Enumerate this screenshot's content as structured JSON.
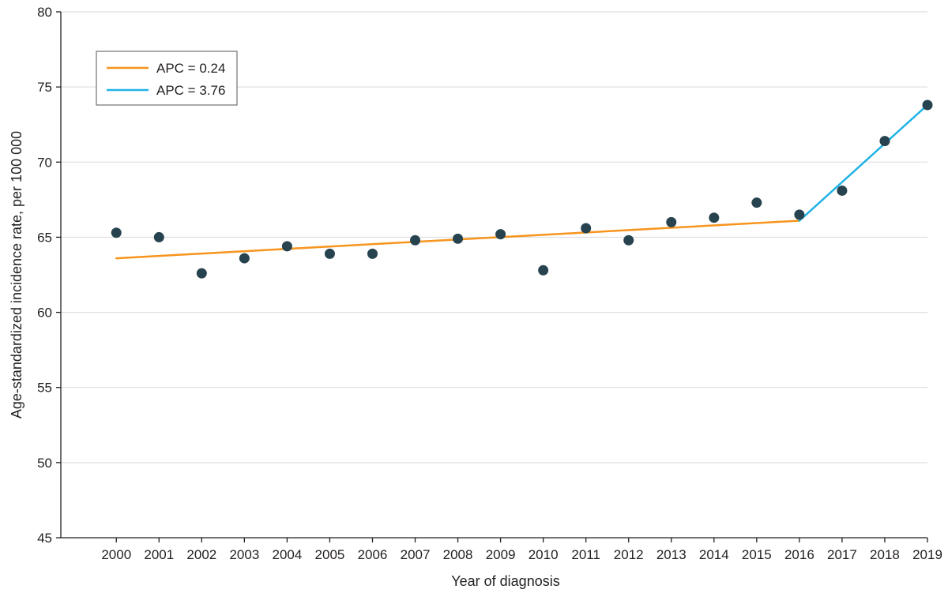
{
  "chart_data": {
    "type": "scatter",
    "xlabel": "Year of diagnosis",
    "ylabel": "Age-standardized incidence rate, per 100 000",
    "ylim": [
      45,
      80
    ],
    "yticks": [
      45,
      50,
      55,
      60,
      65,
      70,
      75,
      80
    ],
    "xticks": [
      2000,
      2001,
      2002,
      2003,
      2004,
      2005,
      2006,
      2007,
      2008,
      2009,
      2010,
      2011,
      2012,
      2013,
      2014,
      2015,
      2016,
      2017,
      2018,
      2019
    ],
    "grid": "horizontal",
    "legend_position": "top-left",
    "point_color": "#26434f",
    "points": [
      {
        "x": 2000,
        "y": 65.3
      },
      {
        "x": 2001,
        "y": 65.0
      },
      {
        "x": 2002,
        "y": 62.6
      },
      {
        "x": 2003,
        "y": 63.6
      },
      {
        "x": 2004,
        "y": 64.4
      },
      {
        "x": 2005,
        "y": 63.9
      },
      {
        "x": 2006,
        "y": 63.9
      },
      {
        "x": 2007,
        "y": 64.8
      },
      {
        "x": 2008,
        "y": 64.9
      },
      {
        "x": 2009,
        "y": 65.2
      },
      {
        "x": 2010,
        "y": 62.8
      },
      {
        "x": 2011,
        "y": 65.6
      },
      {
        "x": 2012,
        "y": 64.8
      },
      {
        "x": 2013,
        "y": 66.0
      },
      {
        "x": 2014,
        "y": 66.3
      },
      {
        "x": 2015,
        "y": 67.3
      },
      {
        "x": 2016,
        "y": 66.5
      },
      {
        "x": 2017,
        "y": 68.1
      },
      {
        "x": 2018,
        "y": 71.4
      },
      {
        "x": 2019,
        "y": 73.8
      }
    ],
    "trend_lines": [
      {
        "name": "APC = 0.24",
        "color": "#f7941d",
        "x": [
          2000,
          2016
        ],
        "y": [
          63.6,
          66.1
        ]
      },
      {
        "name": "APC = 3.76",
        "color": "#1fb3e5",
        "x": [
          2016,
          2019
        ],
        "y": [
          66.1,
          73.8
        ]
      }
    ]
  }
}
